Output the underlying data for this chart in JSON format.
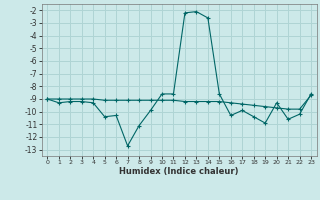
{
  "xlabel": "Humidex (Indice chaleur)",
  "background_color": "#cce9e9",
  "grid_color": "#afd4d4",
  "line_color": "#006666",
  "x_data": [
    0,
    1,
    2,
    3,
    4,
    5,
    6,
    7,
    8,
    9,
    10,
    11,
    12,
    13,
    14,
    15,
    16,
    17,
    18,
    19,
    20,
    21,
    22,
    23
  ],
  "y1_data": [
    -9.0,
    -9.3,
    -9.2,
    -9.2,
    -9.3,
    -10.4,
    -10.3,
    -12.7,
    -11.1,
    -9.9,
    -8.6,
    -8.6,
    -2.2,
    -2.1,
    -2.6,
    -8.6,
    -10.3,
    -9.9,
    -10.4,
    -10.9,
    -9.3,
    -10.6,
    -10.2,
    -8.6
  ],
  "y2_data": [
    -9.0,
    -9.0,
    -9.0,
    -9.0,
    -9.0,
    -9.1,
    -9.1,
    -9.1,
    -9.1,
    -9.1,
    -9.1,
    -9.1,
    -9.2,
    -9.2,
    -9.2,
    -9.2,
    -9.3,
    -9.4,
    -9.5,
    -9.6,
    -9.7,
    -9.8,
    -9.8,
    -8.7
  ],
  "ylim": [
    -13.5,
    -1.5
  ],
  "xlim": [
    -0.5,
    23.5
  ],
  "yticks": [
    -2,
    -3,
    -4,
    -5,
    -6,
    -7,
    -8,
    -9,
    -10,
    -11,
    -12,
    -13
  ],
  "xticks": [
    0,
    1,
    2,
    3,
    4,
    5,
    6,
    7,
    8,
    9,
    10,
    11,
    12,
    13,
    14,
    15,
    16,
    17,
    18,
    19,
    20,
    21,
    22,
    23
  ]
}
